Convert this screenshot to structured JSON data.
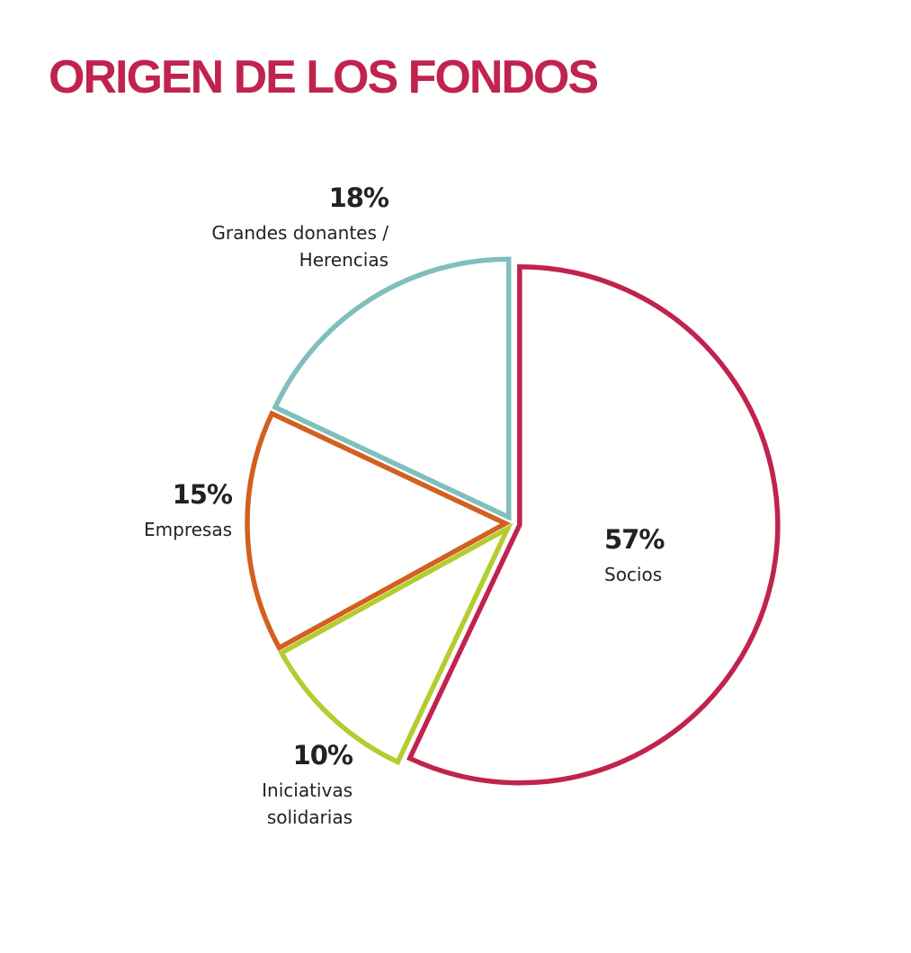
{
  "chart_data": {
    "type": "pie",
    "title": "ORIGEN DE LOS FONDOS",
    "categories": [
      "Socios",
      "Iniciativas solidarias",
      "Empresas",
      "Grandes donantes / Herencias"
    ],
    "values": [
      57,
      10,
      15,
      18
    ],
    "value_labels": [
      "57%",
      "10%",
      "15%",
      "18%"
    ],
    "colors": [
      "#c0234e",
      "#b5cc2e",
      "#d2601f",
      "#7fbfbc"
    ]
  }
}
